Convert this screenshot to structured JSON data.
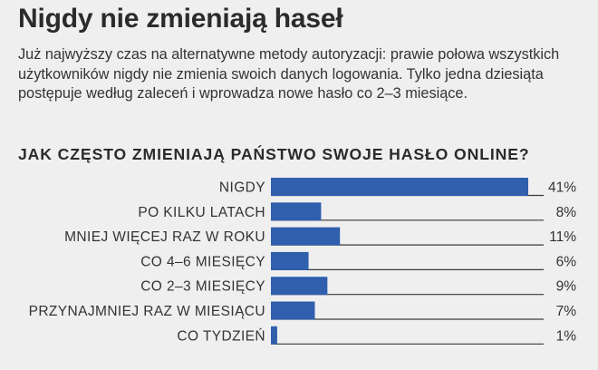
{
  "header": {
    "title": "Nigdy nie zmieniają haseł",
    "description": "Już najwyższy czas na alternatywne metody autoryzacji: prawie połowa wszystkich użytkowników nigdy nie zmienia swoich danych logowania. Tylko jedna dziesiąta postępuje według zaleceń i wprowadza nowe hasło co 2–3 miesiące."
  },
  "chart_data": {
    "type": "bar",
    "orientation": "horizontal",
    "title": "JAK CZĘSTO ZMIENIAJĄ PAŃSTWO SWOJE HASŁO ONLINE?",
    "categories": [
      "NIGDY",
      "PO KILKU LATACH",
      "MNIEJ WIĘCEJ RAZ W ROKU",
      "CO 4–6 MIESIĘCY",
      "CO 2–3 MIESIĘCY",
      "PRZYNAJMNIEJ RAZ W MIESIĄCU",
      "CO TYDZIEŃ"
    ],
    "values": [
      41,
      8,
      11,
      6,
      9,
      7,
      1
    ],
    "value_labels": [
      "41%",
      "8%",
      "11%",
      "6%",
      "9%",
      "7%",
      "1%"
    ],
    "xlim": [
      0,
      42
    ],
    "grid": false,
    "legend": "none",
    "bar_color": "#2f5fad"
  }
}
